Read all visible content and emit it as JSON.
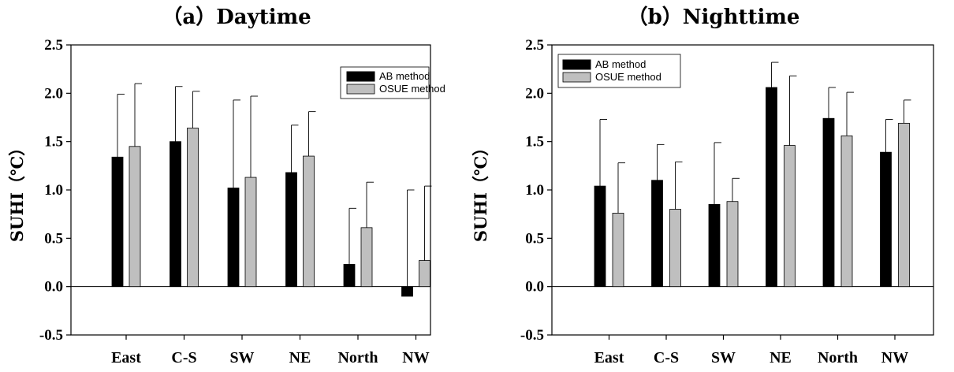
{
  "colors": {
    "series_ab": "#000000",
    "series_osue": "#bfbfbf",
    "axis": "#000000"
  },
  "chart_data": [
    {
      "type": "bar",
      "title": "（a）Daytime",
      "ylabel": "SUHI（℃）",
      "xlabel": "",
      "ylim": [
        -0.5,
        2.5
      ],
      "yticks": [
        -0.5,
        0.0,
        0.5,
        1.0,
        1.5,
        2.0,
        2.5
      ],
      "ytick_labels": [
        "-0.5",
        "0.0",
        "0.5",
        "1.0",
        "1.5",
        "2.0",
        "2.5"
      ],
      "categories": [
        "East",
        "C-S",
        "SW",
        "NE",
        "North",
        "NW"
      ],
      "legend_position": "top-right",
      "grid": false,
      "series": [
        {
          "name": "AB method",
          "color": "#000000",
          "values": [
            1.34,
            1.5,
            1.02,
            1.18,
            0.23,
            -0.1
          ],
          "error_upper": [
            1.99,
            2.07,
            1.93,
            1.67,
            0.81,
            1.0
          ]
        },
        {
          "name": "OSUE method",
          "color": "#bfbfbf",
          "values": [
            1.45,
            1.64,
            1.13,
            1.35,
            0.61,
            0.27
          ],
          "error_upper": [
            2.1,
            2.02,
            1.97,
            1.81,
            1.08,
            1.04
          ]
        }
      ]
    },
    {
      "type": "bar",
      "title": "（b）Nighttime",
      "ylabel": "SUHI（℃）",
      "xlabel": "",
      "ylim": [
        -0.5,
        2.5
      ],
      "yticks": [
        -0.5,
        0.0,
        0.5,
        1.0,
        1.5,
        2.0,
        2.5
      ],
      "ytick_labels": [
        "-0.5",
        "0.0",
        "0.5",
        "1.0",
        "1.5",
        "2.0",
        "2.5"
      ],
      "categories": [
        "East",
        "C-S",
        "SW",
        "NE",
        "North",
        "NW"
      ],
      "legend_position": "top-left",
      "grid": false,
      "series": [
        {
          "name": "AB method",
          "color": "#000000",
          "values": [
            1.04,
            1.1,
            0.85,
            2.06,
            1.74,
            1.39
          ],
          "error_upper": [
            1.73,
            1.47,
            1.49,
            2.32,
            2.06,
            1.73
          ]
        },
        {
          "name": "OSUE method",
          "color": "#bfbfbf",
          "values": [
            0.76,
            0.8,
            0.88,
            1.46,
            1.56,
            1.69
          ],
          "error_upper": [
            1.28,
            1.29,
            1.12,
            2.18,
            2.01,
            1.93
          ]
        }
      ]
    }
  ]
}
